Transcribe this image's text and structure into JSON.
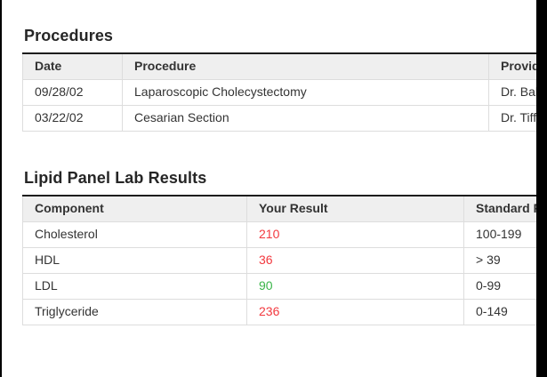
{
  "colors": {
    "abnormal_result": "#f2393f",
    "normal_result": "#3bb54a",
    "table_header_bg": "#efefef",
    "table_top_border": "#1c1c1c",
    "edge_bars": "#000000"
  },
  "procedures": {
    "title": "Procedures",
    "columns": [
      "Date",
      "Procedure",
      "Provider"
    ],
    "rows": [
      {
        "date": "09/28/02",
        "procedure": "Laparoscopic Cholecystectomy",
        "provider": "Dr. Bala Venkat"
      },
      {
        "date": "03/22/02",
        "procedure": "Cesarian Section",
        "provider": "Dr. Tiffany Ma"
      }
    ]
  },
  "lipid_panel": {
    "title": "Lipid Panel Lab Results",
    "columns": [
      "Component",
      "Your Result",
      "Standard Range"
    ],
    "rows": [
      {
        "component": "Cholesterol",
        "result": "210",
        "result_status": "abnormal",
        "standard": "100-199"
      },
      {
        "component": "HDL",
        "result": "36",
        "result_status": "abnormal",
        "standard": "> 39"
      },
      {
        "component": "LDL",
        "result": "90",
        "result_status": "normal",
        "standard": "0-99"
      },
      {
        "component": "Triglyceride",
        "result": "236",
        "result_status": "abnormal",
        "standard": "0-149"
      }
    ]
  }
}
